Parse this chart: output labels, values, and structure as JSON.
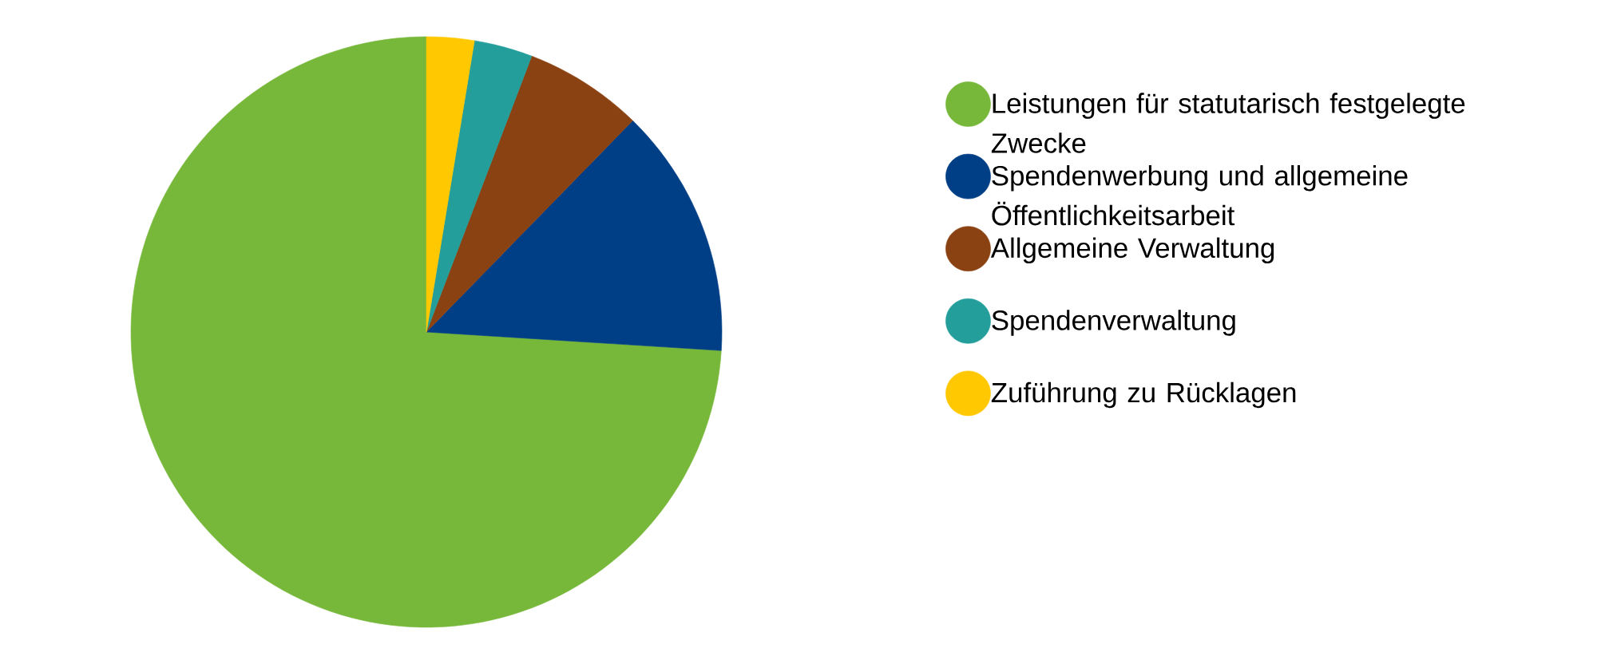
{
  "chart_data": {
    "type": "pie",
    "categories": [
      "Leistungen für statutarisch festgelegte Zwecke",
      "Spendenwerbung und allgemeine Öffentlichkeitsarbeit",
      "Allgemeine Verwaltung",
      "Spendenverwaltung",
      "Zuführung zu Rücklagen"
    ],
    "values": [
      74.0,
      13.7,
      6.5,
      3.2,
      2.6
    ],
    "colors": [
      "#77b83a",
      "#003e85",
      "#8b4212",
      "#239e9a",
      "#ffc800"
    ],
    "legend": "right"
  }
}
